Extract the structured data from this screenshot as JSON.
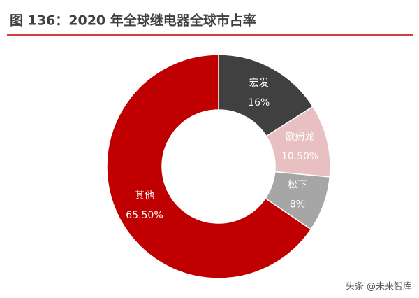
{
  "chart_data": {
    "type": "donut",
    "title": "图 136：2020 年全球继电器全球市占率",
    "categories": [
      "宏发",
      "欧姆龙",
      "松下",
      "其他"
    ],
    "values": [
      16,
      10.5,
      8,
      65.5
    ],
    "value_labels": [
      "16%",
      "10.50%",
      "8%",
      "65.50%"
    ],
    "colors": [
      "#404040",
      "#e8c0c1",
      "#a6a6a6",
      "#c00000"
    ],
    "watermark": "头条 @未来智库"
  }
}
